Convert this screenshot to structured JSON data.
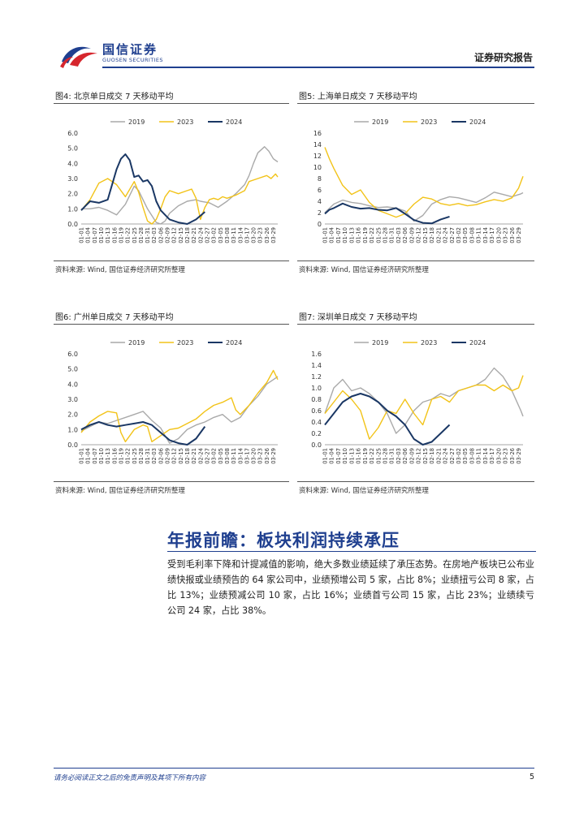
{
  "header": {
    "logo_cn": "国信证券",
    "logo_en": "GUOSEN SECURITIES",
    "report_type": "证券研究报告"
  },
  "colors": {
    "s2019": "#a9a9a9",
    "s2023": "#f2c318",
    "s2024": "#1a3764",
    "brand": "#1f3f8f"
  },
  "figures": [
    {
      "title": "图4: 北京单日成交 7 天移动平均",
      "source": "资料来源: Wind, 国信证券经济研究所整理"
    },
    {
      "title": "图5: 上海单日成交 7 天移动平均",
      "source": "资料来源: Wind, 国信证券经济研究所整理"
    },
    {
      "title": "图6: 广州单日成交 7 天移动平均",
      "source": "资料来源: Wind, 国信证券经济研究所整理"
    },
    {
      "title": "图7: 深圳单日成交 7 天移动平均",
      "source": "资料来源: Wind, 国信证券经济研究所整理"
    }
  ],
  "chart_data": [
    {
      "type": "line",
      "legend": [
        "2019",
        "2023",
        "2024"
      ],
      "legend_position": "top",
      "ylim": [
        0,
        6
      ],
      "yticks": [
        "6.0",
        "5.0",
        "4.0",
        "3.0",
        "2.0",
        "1.0",
        "0.0"
      ],
      "xticks": [
        "01-01",
        "01-04",
        "01-07",
        "01-10",
        "01-13",
        "01-16",
        "01-19",
        "01-22",
        "01-25",
        "01-28",
        "01-31",
        "02-03",
        "02-06",
        "02-09",
        "02-12",
        "02-15",
        "02-18",
        "02-21",
        "02-24",
        "02-27",
        "03-02",
        "03-05",
        "03-08",
        "03-11",
        "03-14",
        "03-17",
        "03-20",
        "03-23",
        "03-26",
        "03-29"
      ],
      "grid": false,
      "series": [
        {
          "name": "2019",
          "days": [
            1,
            5,
            9,
            13,
            17,
            21,
            25,
            27,
            29,
            31,
            35,
            37,
            39,
            41,
            45,
            49,
            53,
            55,
            59,
            63,
            67,
            71,
            75,
            77,
            79,
            81,
            84,
            86,
            88,
            90
          ],
          "values": [
            1.0,
            1.0,
            1.1,
            0.9,
            0.6,
            1.3,
            2.5,
            2.2,
            1.6,
            1.0,
            0.1,
            0.0,
            0.2,
            0.7,
            1.2,
            1.5,
            1.6,
            1.5,
            1.4,
            1.1,
            1.5,
            2.0,
            2.6,
            3.2,
            4.0,
            4.7,
            5.1,
            4.8,
            4.3,
            4.1
          ]
        },
        {
          "name": "2023",
          "days": [
            1,
            5,
            9,
            13,
            17,
            21,
            25,
            27,
            29,
            31,
            33,
            35,
            37,
            39,
            41,
            45,
            49,
            51,
            53,
            55,
            57,
            59,
            61,
            63,
            65,
            67,
            71,
            75,
            77,
            81,
            85,
            87,
            89,
            90
          ],
          "values": [
            0.9,
            1.6,
            2.7,
            3.0,
            2.6,
            1.8,
            2.8,
            2.1,
            1.1,
            0.2,
            0.0,
            0.3,
            1.0,
            1.8,
            2.2,
            2.0,
            2.2,
            2.3,
            1.7,
            0.3,
            1.1,
            1.6,
            1.7,
            1.6,
            1.8,
            1.7,
            1.9,
            2.2,
            2.8,
            3.0,
            3.2,
            3.0,
            3.3,
            3.1
          ]
        },
        {
          "name": "2024",
          "days": [
            1,
            3,
            5,
            9,
            13,
            17,
            19,
            21,
            23,
            25,
            27,
            29,
            31,
            33,
            35,
            37,
            39,
            41,
            45,
            49,
            53,
            57
          ],
          "values": [
            0.9,
            1.2,
            1.5,
            1.4,
            1.6,
            3.6,
            4.3,
            4.6,
            4.2,
            3.1,
            3.2,
            2.8,
            2.9,
            2.5,
            1.5,
            0.9,
            0.6,
            0.3,
            0.1,
            0.0,
            0.3,
            0.8
          ]
        }
      ]
    },
    {
      "type": "line",
      "legend": [
        "2019",
        "2023",
        "2024"
      ],
      "legend_position": "top",
      "ylim": [
        0,
        16
      ],
      "yticks": [
        "16",
        "14",
        "12",
        "10",
        "8",
        "6",
        "4",
        "2",
        "0"
      ],
      "xticks": [
        "01-01",
        "01-04",
        "01-07",
        "01-10",
        "01-13",
        "01-16",
        "01-19",
        "01-22",
        "01-25",
        "01-28",
        "01-31",
        "02-03",
        "02-06",
        "02-09",
        "02-12",
        "02-15",
        "02-18",
        "02-21",
        "02-24",
        "02-27",
        "03-02",
        "03-05",
        "03-08",
        "03-11",
        "03-14",
        "03-17",
        "03-20",
        "03-23",
        "03-26",
        "03-29"
      ],
      "grid": false,
      "series": [
        {
          "name": "2019",
          "days": [
            1,
            5,
            9,
            13,
            17,
            21,
            25,
            29,
            33,
            37,
            41,
            45,
            49,
            53,
            57,
            61,
            65,
            69,
            73,
            77,
            81,
            85,
            89,
            90
          ],
          "values": [
            2.0,
            3.5,
            4.2,
            3.8,
            3.6,
            3.2,
            2.9,
            3.0,
            2.8,
            2.3,
            0.5,
            1.5,
            3.5,
            4.3,
            4.8,
            4.6,
            4.2,
            3.8,
            4.6,
            5.6,
            5.2,
            4.8,
            5.3,
            5.5
          ]
        },
        {
          "name": "2023",
          "days": [
            1,
            3,
            5,
            9,
            13,
            17,
            21,
            25,
            29,
            33,
            37,
            41,
            45,
            49,
            53,
            57,
            61,
            65,
            69,
            73,
            77,
            81,
            85,
            88,
            90
          ],
          "values": [
            13.5,
            11.5,
            9.8,
            6.8,
            5.2,
            6.0,
            3.8,
            2.4,
            1.8,
            1.2,
            1.8,
            3.5,
            4.7,
            4.4,
            3.6,
            3.3,
            3.6,
            3.2,
            3.4,
            3.9,
            4.3,
            4.0,
            4.6,
            6.3,
            8.4
          ]
        },
        {
          "name": "2024",
          "days": [
            1,
            3,
            5,
            9,
            13,
            17,
            21,
            25,
            29,
            33,
            37,
            41,
            45,
            49,
            53,
            57
          ],
          "values": [
            1.8,
            2.5,
            2.8,
            3.6,
            3.0,
            2.7,
            2.8,
            2.5,
            2.4,
            2.8,
            1.8,
            0.7,
            0.2,
            0.1,
            0.8,
            1.3
          ]
        }
      ]
    },
    {
      "type": "line",
      "legend": [
        "2019",
        "2023",
        "2024"
      ],
      "legend_position": "top",
      "ylim": [
        0,
        6
      ],
      "yticks": [
        "6.0",
        "5.0",
        "4.0",
        "3.0",
        "2.0",
        "1.0",
        "0.0"
      ],
      "xticks": [
        "01-01",
        "01-04",
        "01-07",
        "01-10",
        "01-13",
        "01-16",
        "01-19",
        "01-22",
        "01-25",
        "01-28",
        "01-31",
        "02-03",
        "02-06",
        "02-09",
        "02-12",
        "02-15",
        "02-18",
        "02-21",
        "02-24",
        "02-27",
        "03-02",
        "03-05",
        "03-08",
        "03-11",
        "03-14",
        "03-17",
        "03-20",
        "03-23",
        "03-26",
        "03-29"
      ],
      "grid": false,
      "series": [
        {
          "name": "2019",
          "days": [
            1,
            5,
            9,
            13,
            17,
            21,
            25,
            29,
            33,
            37,
            39,
            41,
            45,
            49,
            53,
            57,
            61,
            65,
            69,
            73,
            77,
            81,
            85,
            89,
            90
          ],
          "values": [
            0.9,
            1.2,
            1.5,
            1.4,
            1.6,
            1.8,
            2.0,
            2.2,
            1.6,
            1.1,
            0.6,
            0.1,
            0.4,
            1.0,
            1.3,
            1.5,
            1.8,
            2.0,
            1.5,
            1.8,
            2.6,
            3.2,
            4.0,
            4.4,
            4.5
          ]
        },
        {
          "name": "2023",
          "days": [
            1,
            5,
            9,
            13,
            17,
            19,
            21,
            25,
            29,
            31,
            33,
            37,
            41,
            45,
            49,
            53,
            57,
            61,
            65,
            69,
            71,
            73,
            77,
            81,
            85,
            88,
            90
          ],
          "values": [
            0.8,
            1.5,
            1.9,
            2.2,
            2.1,
            0.8,
            0.2,
            1.0,
            1.3,
            1.2,
            0.2,
            0.6,
            1.0,
            1.1,
            1.4,
            1.7,
            2.2,
            2.6,
            2.8,
            3.1,
            2.3,
            2.0,
            2.6,
            3.4,
            4.1,
            4.9,
            4.3
          ]
        },
        {
          "name": "2024",
          "days": [
            1,
            5,
            9,
            13,
            17,
            21,
            25,
            29,
            33,
            37,
            41,
            45,
            49,
            53,
            57
          ],
          "values": [
            1.0,
            1.3,
            1.5,
            1.3,
            1.2,
            1.3,
            1.4,
            1.5,
            1.3,
            0.8,
            0.3,
            0.1,
            0.0,
            0.4,
            1.2
          ]
        }
      ]
    },
    {
      "type": "line",
      "legend": [
        "2019",
        "2023",
        "2024"
      ],
      "legend_position": "top",
      "ylim": [
        0,
        1.6
      ],
      "yticks": [
        "1.6",
        "1.4",
        "1.2",
        "1.0",
        "0.8",
        "0.6",
        "0.4",
        "0.2",
        "0.0"
      ],
      "xticks": [
        "01-01",
        "01-04",
        "01-07",
        "01-10",
        "01-13",
        "01-16",
        "01-19",
        "01-22",
        "01-25",
        "01-28",
        "01-31",
        "02-03",
        "02-06",
        "02-09",
        "02-12",
        "02-15",
        "02-18",
        "02-21",
        "02-24",
        "02-27",
        "03-02",
        "03-05",
        "03-08",
        "03-11",
        "03-14",
        "03-17",
        "03-20",
        "03-23",
        "03-26",
        "03-29"
      ],
      "grid": false,
      "series": [
        {
          "name": "2019",
          "days": [
            1,
            5,
            9,
            13,
            17,
            21,
            25,
            29,
            33,
            37,
            41,
            45,
            49,
            53,
            57,
            61,
            65,
            69,
            73,
            77,
            81,
            85,
            89,
            90
          ],
          "values": [
            0.55,
            1.0,
            1.15,
            0.95,
            1.0,
            0.9,
            0.75,
            0.55,
            0.2,
            0.35,
            0.6,
            0.75,
            0.8,
            0.9,
            0.85,
            0.95,
            1.0,
            1.05,
            1.15,
            1.35,
            1.2,
            0.95,
            0.6,
            0.5
          ]
        },
        {
          "name": "2023",
          "days": [
            1,
            5,
            9,
            13,
            17,
            21,
            25,
            29,
            33,
            37,
            41,
            45,
            49,
            53,
            57,
            61,
            65,
            69,
            73,
            77,
            81,
            85,
            88,
            90
          ],
          "values": [
            0.55,
            0.75,
            0.95,
            0.8,
            0.6,
            0.1,
            0.3,
            0.6,
            0.55,
            0.8,
            0.55,
            0.35,
            0.8,
            0.85,
            0.75,
            0.95,
            1.0,
            1.05,
            1.05,
            0.95,
            1.05,
            0.95,
            1.0,
            1.22
          ]
        },
        {
          "name": "2024",
          "days": [
            1,
            5,
            9,
            13,
            17,
            21,
            25,
            29,
            33,
            37,
            41,
            45,
            49,
            53,
            57
          ],
          "values": [
            0.35,
            0.55,
            0.75,
            0.85,
            0.9,
            0.85,
            0.75,
            0.6,
            0.5,
            0.35,
            0.1,
            0.0,
            0.05,
            0.2,
            0.35
          ]
        }
      ]
    }
  ],
  "section": {
    "title": "年报前瞻：板块利润持续承压",
    "body": "受到毛利率下降和计提减值的影响，绝大多数业绩延续了承压态势。在房地产板块已公布业绩快报或业绩预告的 64 家公司中，业绩预增公司 5 家，占比 8%；业绩扭亏公司 8 家，占比 13%；业绩预减公司 10 家，占比 16%；业绩首亏公司 15 家，占比 23%；业绩续亏公司 24 家，占比 38%。"
  },
  "footer": {
    "note": "请务必阅读正文之后的免责声明及其项下所有内容",
    "page": "5"
  }
}
